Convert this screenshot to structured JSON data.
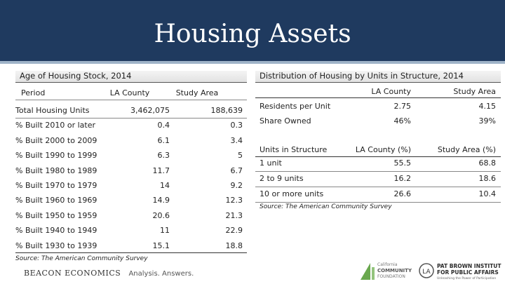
{
  "header": {
    "title": "Housing Assets"
  },
  "left": {
    "title": "Age of Housing Stock, 2014",
    "columns": [
      "Period",
      "LA County",
      "Study Area"
    ],
    "rows": [
      {
        "label": "Total Housing Units",
        "la": "3,462,075",
        "study": "188,639"
      },
      {
        "label": "% Built 2010 or later",
        "la": "0.4",
        "study": "0.3"
      },
      {
        "label": "% Built 2000 to 2009",
        "la": "6.1",
        "study": "3.4"
      },
      {
        "label": "% Built 1990 to 1999",
        "la": "6.3",
        "study": "5"
      },
      {
        "label": "% Built 1980 to 1989",
        "la": "11.7",
        "study": "6.7"
      },
      {
        "label": "% Built 1970 to 1979",
        "la": "14",
        "study": "9.2"
      },
      {
        "label": "% Built 1960 to 1969",
        "la": "14.9",
        "study": "12.3"
      },
      {
        "label": "% Built 1950 to 1959",
        "la": "20.6",
        "study": "21.3"
      },
      {
        "label": "% Built 1940 to 1949",
        "la": "11",
        "study": "22.9"
      },
      {
        "label": "% Built 1930 to 1939",
        "la": "15.1",
        "study": "18.8"
      }
    ],
    "source": "Source: The American Community Survey"
  },
  "right": {
    "title": "Distribution of Housing by Units in Structure, 2014",
    "top_columns": [
      "LA County",
      "Study Area"
    ],
    "top_rows": [
      {
        "label": "Residents per Unit",
        "la": "2.75",
        "study": "4.15"
      },
      {
        "label": "Share Owned",
        "la": "46%",
        "study": "39%"
      }
    ],
    "units_header": {
      "label": "Units in Structure",
      "la": "LA County (%)",
      "study": "Study Area (%)"
    },
    "unit_rows": [
      {
        "label": "1 unit",
        "la": "55.5",
        "study": "68.8"
      },
      {
        "label": "2 to 9 units",
        "la": "16.2",
        "study": "18.6"
      },
      {
        "label": "10 or more units",
        "la": "26.6",
        "study": "10.4"
      }
    ],
    "source": "Source: The American Community Survey"
  },
  "footer": {
    "beacon_name": "BEACON ECONOMICS",
    "tagline": "Analysis. Answers.",
    "ccc_text": [
      "California",
      "COMMUNITY",
      "FOUNDATION"
    ],
    "pb_logo_text": "LA",
    "pb_name": "PAT BROWN INSTITUTE",
    "pb_sub": "FOR PUBLIC AFFAIRS",
    "pb_tag": "Unleashing the Power of Participation"
  }
}
